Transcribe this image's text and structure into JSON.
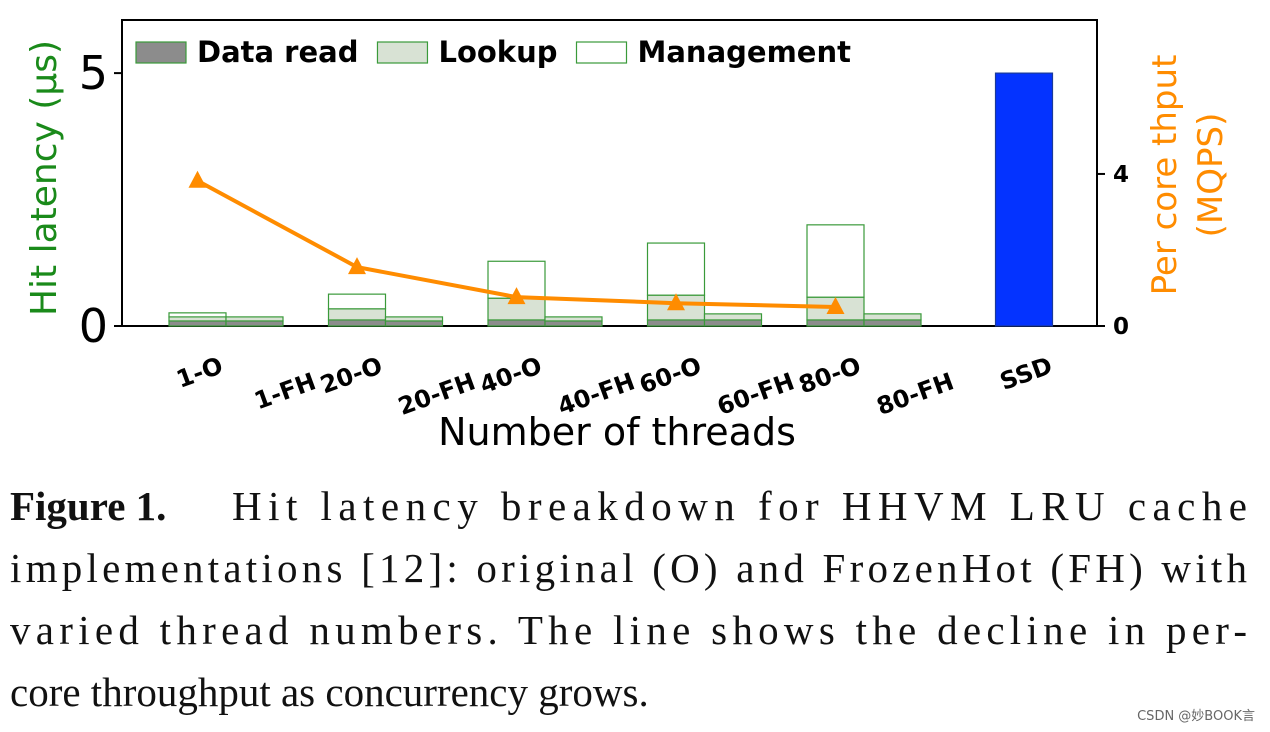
{
  "chart_data": {
    "type": "stacked-bar-line",
    "xlabel": "Number of threads",
    "ylabel": "Hit latency (μs)",
    "y2label": [
      "Per core thput",
      "(MQPS)"
    ],
    "ylabel_color": "#1a8a1a",
    "y2label_color": "#ff8c00",
    "categories": [
      "1-O",
      "1-FH",
      "20-O",
      "20-FH",
      "40-O",
      "40-FH",
      "60-O",
      "60-FH",
      "80-O",
      "80-FH",
      "SSD"
    ],
    "edge_color": "#3a9a3a",
    "series": [
      {
        "name": "Data read",
        "color": "#8c8c8c",
        "values": [
          0.1,
          0.1,
          0.12,
          0.1,
          0.12,
          0.1,
          0.12,
          0.12,
          0.12,
          0.12,
          null
        ]
      },
      {
        "name": "Lookup",
        "color": "#d8e2d4",
        "values": [
          0.08,
          0.08,
          0.22,
          0.08,
          0.43,
          0.08,
          0.49,
          0.12,
          0.45,
          0.12,
          null
        ]
      },
      {
        "name": "Management",
        "color": "#ffffff",
        "values": [
          0.08,
          0,
          0.29,
          0,
          0.73,
          0,
          1.03,
          0,
          1.43,
          0,
          null
        ]
      }
    ],
    "ssd": {
      "category": "SSD",
      "value": 5,
      "color": "#0433ff"
    },
    "line": {
      "axis": "y2",
      "color": "#ff8c00",
      "categories": [
        "1-O",
        "20-O",
        "40-O",
        "60-O",
        "80-O"
      ],
      "values": [
        3.82,
        1.55,
        0.76,
        0.6,
        0.5
      ]
    },
    "ylim": [
      0,
      6.05
    ],
    "yticks": [
      0,
      5
    ],
    "y2lim": [
      0,
      8.05
    ],
    "y2ticks": [
      0,
      4
    ],
    "legend": "upper-left"
  },
  "caption": {
    "label": "Figure 1.",
    "lines": [
      "Hit latency breakdown for HHVM LRU cache",
      "implementations [12]: original (O) and FrozenHot (FH) with",
      "varied thread numbers. The line shows the decline in per-",
      "core throughput as concurrency grows."
    ]
  },
  "watermark": "CSDN @妙BOOK言"
}
